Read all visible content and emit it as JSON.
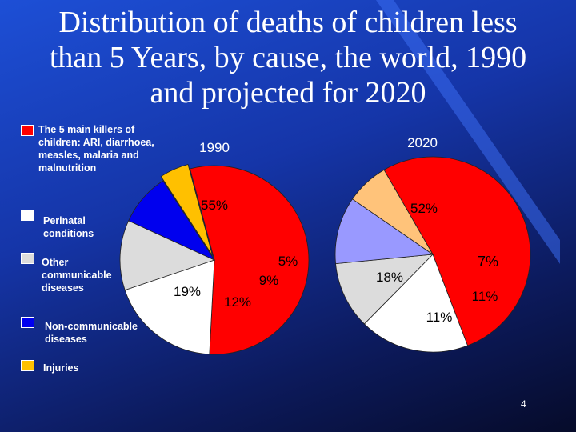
{
  "title": "Distribution of deaths of children less than 5 Years, by cause, the world, 1990 and projected for 2020",
  "page_number": "4",
  "colors": {
    "main_killers": "#ff0000",
    "perinatal": "#ffffff",
    "other_communicable": "#dcdcdc",
    "non_communicable": "#0000ee",
    "injuries": "#ffc000",
    "ncd_2020": "#9999ff",
    "injuries_2020": "#ffc37a"
  },
  "legend": [
    {
      "label": "The 5 main killers of children: ARI, diarrhoea, measles, malaria and malnutrition",
      "color": "#ff0000"
    },
    {
      "label": "Perinatal conditions",
      "color": "#ffffff"
    },
    {
      "label": "Other communicable diseases",
      "color": "#dcdcdc"
    },
    {
      "label": "Non-communicable diseases",
      "color": "#0000ee"
    },
    {
      "label": "Injuries",
      "color": "#ffc000"
    }
  ],
  "chart_data": [
    {
      "type": "pie",
      "title": "1990",
      "categories": [
        "The 5 main killers",
        "Perinatal conditions",
        "Other communicable diseases",
        "Non-communicable diseases",
        "Injuries"
      ],
      "values": [
        55,
        19,
        12,
        9,
        5
      ],
      "labels": [
        "55%",
        "19%",
        "12%",
        "9%",
        "5%"
      ],
      "colors": [
        "#ff0000",
        "#ffffff",
        "#dcdcdc",
        "#0000ee",
        "#ffc000"
      ]
    },
    {
      "type": "pie",
      "title": "2020",
      "categories": [
        "The 5 main killers",
        "Perinatal conditions",
        "Other communicable diseases",
        "Non-communicable diseases",
        "Injuries"
      ],
      "values": [
        52,
        18,
        11,
        11,
        7
      ],
      "labels": [
        "52%",
        "18%",
        "11%",
        "11%",
        "7%"
      ],
      "colors": [
        "#ff0000",
        "#ffffff",
        "#dcdcdc",
        "#9999ff",
        "#ffc37a"
      ]
    }
  ]
}
